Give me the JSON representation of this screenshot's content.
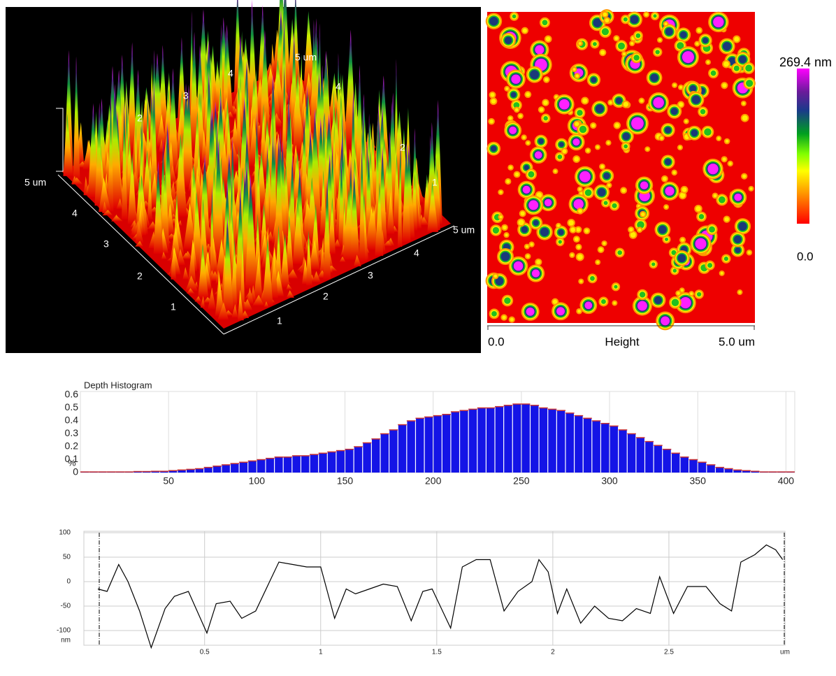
{
  "surface_3d": {
    "left_axis_labels": [
      "5 um",
      "4",
      "3",
      "2",
      "1"
    ],
    "right_axis_labels": [
      "1",
      "2",
      "3",
      "4",
      "5 um"
    ],
    "back_left_labels": [
      "2",
      "3",
      "4"
    ],
    "back_right_labels": [
      "5 um",
      "4",
      "2",
      "1"
    ]
  },
  "height_map": {
    "colorbar_max": "269.4 nm",
    "colorbar_min": "0.0",
    "x_min": "0.0",
    "x_label": "Height",
    "x_max": "5.0 um"
  },
  "chart_data": [
    {
      "type": "histogram",
      "title": "Depth Histogram",
      "y_label": "%",
      "color": "#1414e6",
      "edge_color": "#c83232",
      "bins": [
        0,
        5,
        10,
        15,
        20,
        25,
        30,
        35,
        40,
        45,
        50,
        55,
        60,
        65,
        70,
        75,
        80,
        85,
        90,
        95,
        100,
        105,
        110,
        115,
        120,
        125,
        130,
        135,
        140,
        145,
        150,
        155,
        160,
        165,
        170,
        175,
        180,
        185,
        190,
        195,
        200,
        205,
        210,
        215,
        220,
        225,
        230,
        235,
        240,
        245,
        250,
        255,
        260,
        265,
        270,
        275,
        280,
        285,
        290,
        295,
        300,
        305,
        310,
        315,
        320,
        325,
        330,
        335,
        340,
        345,
        350,
        355,
        360,
        365,
        370,
        375,
        380,
        385,
        390,
        395,
        400,
        405
      ],
      "values": [
        0.005,
        0.005,
        0.005,
        0.005,
        0.005,
        0.005,
        0.008,
        0.008,
        0.01,
        0.01,
        0.015,
        0.02,
        0.025,
        0.03,
        0.04,
        0.05,
        0.06,
        0.07,
        0.08,
        0.09,
        0.1,
        0.11,
        0.12,
        0.12,
        0.13,
        0.13,
        0.14,
        0.15,
        0.16,
        0.17,
        0.18,
        0.2,
        0.23,
        0.26,
        0.3,
        0.33,
        0.37,
        0.4,
        0.42,
        0.43,
        0.44,
        0.45,
        0.47,
        0.48,
        0.49,
        0.5,
        0.5,
        0.51,
        0.52,
        0.53,
        0.53,
        0.52,
        0.5,
        0.49,
        0.48,
        0.46,
        0.44,
        0.42,
        0.4,
        0.38,
        0.36,
        0.33,
        0.3,
        0.27,
        0.24,
        0.21,
        0.18,
        0.15,
        0.12,
        0.1,
        0.08,
        0.06,
        0.04,
        0.03,
        0.02,
        0.015,
        0.01,
        0.005,
        0.005,
        0.005,
        0.005
      ],
      "xlim": [
        0,
        405
      ],
      "xticks": [
        50,
        100,
        150,
        200,
        250,
        300,
        350,
        400
      ],
      "ylim": [
        0,
        0.6
      ],
      "yticks": [
        0.6,
        0.5,
        0.4,
        0.3,
        0.2,
        0.1,
        0
      ],
      "grid": true
    },
    {
      "type": "line",
      "color": "#000000",
      "x": [
        0.04,
        0.08,
        0.13,
        0.17,
        0.22,
        0.27,
        0.33,
        0.37,
        0.43,
        0.51,
        0.55,
        0.61,
        0.66,
        0.72,
        0.78,
        0.82,
        0.88,
        0.94,
        1.0,
        1.06,
        1.11,
        1.15,
        1.21,
        1.27,
        1.33,
        1.39,
        1.44,
        1.48,
        1.56,
        1.61,
        1.67,
        1.73,
        1.79,
        1.85,
        1.91,
        1.94,
        1.98,
        2.02,
        2.06,
        2.12,
        2.18,
        2.24,
        2.3,
        2.36,
        2.42,
        2.46,
        2.52,
        2.58,
        2.66,
        2.72,
        2.77,
        2.81,
        2.87,
        2.92,
        2.96,
        2.99
      ],
      "values": [
        -15,
        -20,
        35,
        0,
        -60,
        -135,
        -55,
        -30,
        -20,
        -105,
        -45,
        -40,
        -75,
        -60,
        0,
        40,
        35,
        30,
        30,
        -75,
        -15,
        -25,
        -15,
        -5,
        -10,
        -80,
        -20,
        -15,
        -95,
        30,
        45,
        45,
        -60,
        -20,
        0,
        45,
        20,
        -65,
        -15,
        -85,
        -50,
        -75,
        -80,
        -55,
        -65,
        10,
        -65,
        -10,
        -10,
        -45,
        -60,
        40,
        55,
        75,
        65,
        45
      ],
      "xlim": [
        -0.02,
        3.0
      ],
      "xticks": [
        0.5,
        1,
        1.5,
        2,
        2.5,
        {
          "value": 3,
          "label": "um"
        }
      ],
      "ylim": [
        -130,
        100
      ],
      "yticks": [
        100,
        50,
        0,
        -50,
        -100,
        {
          "value": -120,
          "label": "nm"
        }
      ],
      "grid": true
    }
  ]
}
